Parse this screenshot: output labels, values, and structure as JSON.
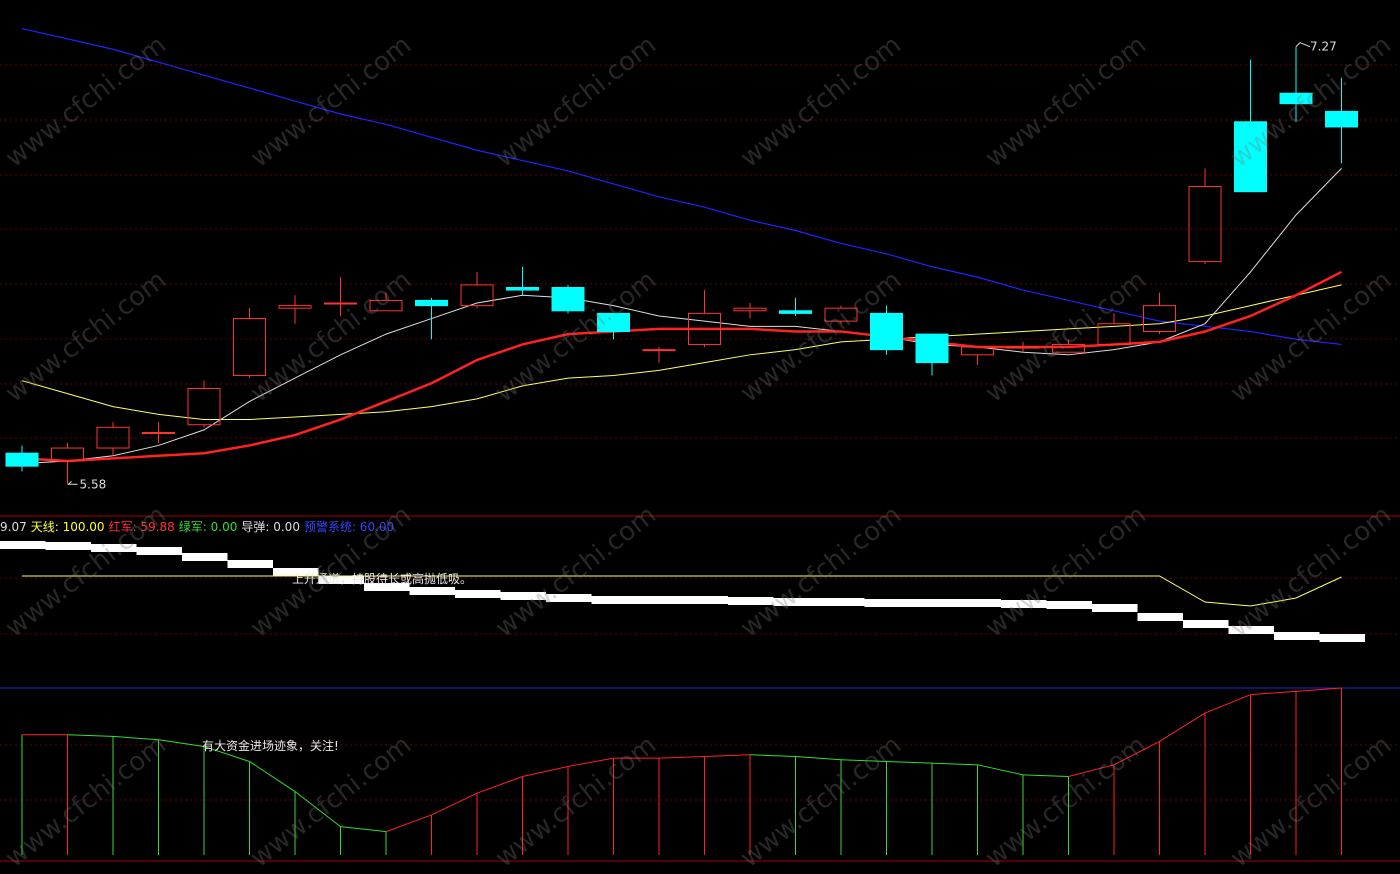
{
  "watermark": "www.cfchi.com",
  "legend": {
    "prefix": "9.07",
    "items": [
      {
        "label": "天线:",
        "value": "100.00",
        "color": "#ffff33"
      },
      {
        "label": "红军:",
        "value": "59.88",
        "color": "#ff3333"
      },
      {
        "label": "绿军:",
        "value": "0.00",
        "color": "#33dd33"
      },
      {
        "label": "导弹:",
        "value": "0.00",
        "color": "#dddddd"
      },
      {
        "label": "预警系统:",
        "value": "60.00",
        "color": "#3344ff"
      }
    ]
  },
  "annotations": {
    "middle": "上升通道，持股待长或高抛低吸。",
    "bottom": "有大资金进场迹象，关注!"
  },
  "colors": {
    "up": "#ff3333",
    "down": "#00ffff",
    "ma_white": "#dddddd",
    "ma_red": "#ff2222",
    "ma_yellow": "#ffff66",
    "ma_blue": "#2222ff",
    "grid": "#6a0000",
    "separator": "#aa0000"
  },
  "chart_data": [
    {
      "type": "candlestick",
      "price_labels": {
        "high": "7.27",
        "low": "5.58"
      },
      "ylim": [
        5.5,
        7.4
      ],
      "candles": [
        {
          "o": 5.7,
          "c": 5.65,
          "h": 5.73,
          "l": 5.63
        },
        {
          "o": 5.67,
          "c": 5.72,
          "h": 5.74,
          "l": 5.58
        },
        {
          "o": 5.72,
          "c": 5.8,
          "h": 5.82,
          "l": 5.69
        },
        {
          "o": 5.78,
          "c": 5.78,
          "h": 5.82,
          "l": 5.74
        },
        {
          "o": 5.81,
          "c": 5.95,
          "h": 5.98,
          "l": 5.8
        },
        {
          "o": 6.0,
          "c": 6.22,
          "h": 6.26,
          "l": 5.99
        },
        {
          "o": 6.26,
          "c": 6.27,
          "h": 6.31,
          "l": 6.2
        },
        {
          "o": 6.28,
          "c": 6.28,
          "h": 6.38,
          "l": 6.23
        },
        {
          "o": 6.25,
          "c": 6.29,
          "h": 6.32,
          "l": 6.25
        },
        {
          "o": 6.29,
          "c": 6.27,
          "h": 6.3,
          "l": 6.14
        },
        {
          "o": 6.27,
          "c": 6.35,
          "h": 6.4,
          "l": 6.26
        },
        {
          "o": 6.34,
          "c": 6.33,
          "h": 6.42,
          "l": 6.31
        },
        {
          "o": 6.34,
          "c": 6.25,
          "h": 6.35,
          "l": 6.24
        },
        {
          "o": 6.24,
          "c": 6.17,
          "h": 6.24,
          "l": 6.14
        },
        {
          "o": 6.1,
          "c": 6.1,
          "h": 6.11,
          "l": 6.05
        },
        {
          "o": 6.12,
          "c": 6.24,
          "h": 6.33,
          "l": 6.11
        },
        {
          "o": 6.25,
          "c": 6.26,
          "h": 6.28,
          "l": 6.22
        },
        {
          "o": 6.25,
          "c": 6.24,
          "h": 6.3,
          "l": 6.23
        },
        {
          "o": 6.21,
          "c": 6.26,
          "h": 6.27,
          "l": 6.2
        },
        {
          "o": 6.24,
          "c": 6.1,
          "h": 6.27,
          "l": 6.08
        },
        {
          "o": 6.16,
          "c": 6.05,
          "h": 6.16,
          "l": 6.0
        },
        {
          "o": 6.08,
          "c": 6.11,
          "h": 6.11,
          "l": 6.04
        },
        {
          "o": 6.11,
          "c": 6.11,
          "h": 6.13,
          "l": 6.09
        },
        {
          "o": 6.09,
          "c": 6.12,
          "h": 6.14,
          "l": 6.09
        },
        {
          "o": 6.12,
          "c": 6.2,
          "h": 6.24,
          "l": 6.12
        },
        {
          "o": 6.17,
          "c": 6.27,
          "h": 6.32,
          "l": 6.16
        },
        {
          "o": 6.44,
          "c": 6.73,
          "h": 6.8,
          "l": 6.43
        },
        {
          "o": 6.98,
          "c": 6.71,
          "h": 7.22,
          "l": 6.71
        },
        {
          "o": 7.09,
          "c": 7.05,
          "h": 7.27,
          "l": 6.98
        },
        {
          "o": 7.02,
          "c": 6.96,
          "h": 7.15,
          "l": 6.82
        }
      ],
      "ma_white": [
        5.66,
        5.67,
        5.69,
        5.73,
        5.79,
        5.9,
        5.99,
        6.08,
        6.16,
        6.22,
        6.28,
        6.31,
        6.3,
        6.27,
        6.23,
        6.21,
        6.19,
        6.19,
        6.17,
        6.15,
        6.12,
        6.11,
        6.09,
        6.08,
        6.1,
        6.13,
        6.2,
        6.4,
        6.62,
        6.8
      ],
      "ma_red": [
        5.68,
        5.67,
        5.68,
        5.69,
        5.7,
        5.73,
        5.77,
        5.83,
        5.9,
        5.97,
        6.06,
        6.12,
        6.16,
        6.17,
        6.18,
        6.18,
        6.18,
        6.17,
        6.17,
        6.15,
        6.13,
        6.11,
        6.11,
        6.11,
        6.12,
        6.13,
        6.17,
        6.23,
        6.31,
        6.4
      ],
      "ma_yellow": [
        5.98,
        5.93,
        5.88,
        5.85,
        5.83,
        5.83,
        5.84,
        5.85,
        5.86,
        5.88,
        5.91,
        5.96,
        5.99,
        6.0,
        6.02,
        6.05,
        6.08,
        6.1,
        6.13,
        6.14,
        6.15,
        6.16,
        6.17,
        6.18,
        6.19,
        6.2,
        6.23,
        6.27,
        6.31,
        6.35
      ],
      "ma_blue": [
        7.34,
        7.3,
        7.26,
        7.21,
        7.16,
        7.11,
        7.06,
        7.01,
        6.97,
        6.92,
        6.87,
        6.83,
        6.79,
        6.74,
        6.69,
        6.65,
        6.6,
        6.56,
        6.51,
        6.47,
        6.42,
        6.38,
        6.33,
        6.29,
        6.25,
        6.21,
        6.19,
        6.17,
        6.14,
        6.12
      ]
    },
    {
      "type": "bar",
      "bars_top": [
        541,
        542,
        544,
        547,
        553,
        560,
        568,
        576,
        583,
        587,
        590,
        592,
        594,
        596,
        596,
        596,
        597,
        598,
        598,
        599,
        599,
        599,
        600,
        601,
        604,
        613,
        620,
        626,
        632,
        634
      ],
      "yellow_line": [
        576,
        576,
        576,
        576,
        576,
        576,
        576,
        576,
        576,
        576,
        576,
        576,
        576,
        576,
        576,
        576,
        576,
        576,
        576,
        576,
        576,
        576,
        576,
        576,
        576,
        576,
        602,
        606,
        598,
        577
      ]
    },
    {
      "type": "line",
      "values": [
        72,
        72,
        71,
        69,
        65,
        56,
        38,
        17,
        14,
        24,
        37,
        47,
        53,
        58,
        58,
        59,
        60,
        59,
        57,
        56,
        55,
        54,
        48,
        47,
        54,
        68,
        85,
        96,
        98,
        100
      ],
      "up_color": "#ff2222",
      "down_color": "#33dd33"
    }
  ]
}
